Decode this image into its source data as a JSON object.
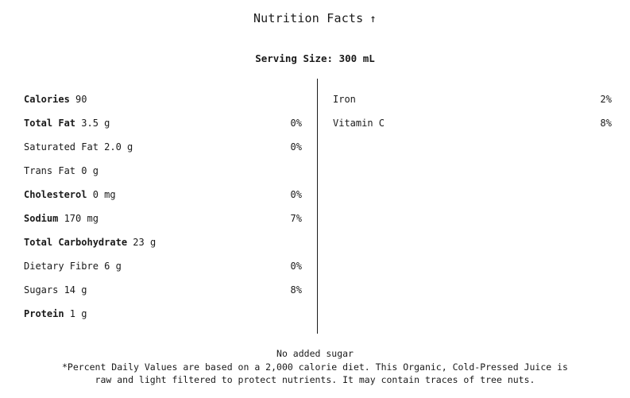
{
  "header": {
    "title": "Nutrition Facts",
    "toggle_icon": "arrow-up-icon",
    "toggle_glyph": "↑"
  },
  "serving_size": "Serving Size: 300 mL",
  "left_rows": [
    {
      "name": "Calories",
      "bold": true,
      "amount": " 90",
      "dv": ""
    },
    {
      "name": "Total Fat",
      "bold": true,
      "amount": " 3.5 g",
      "dv": "0%"
    },
    {
      "name": "Saturated Fat 2.0 g",
      "bold": false,
      "amount": "",
      "dv": "0%"
    },
    {
      "name": "Trans Fat 0 g",
      "bold": false,
      "amount": "",
      "dv": ""
    },
    {
      "name": "Cholesterol",
      "bold": true,
      "amount": " 0 mg",
      "dv": "0%"
    },
    {
      "name": "Sodium",
      "bold": true,
      "amount": " 170 mg",
      "dv": "7%"
    },
    {
      "name": "Total Carbohydrate",
      "bold": true,
      "amount": " 23 g",
      "dv": ""
    },
    {
      "name": "Dietary Fibre 6 g",
      "bold": false,
      "amount": "",
      "dv": "0%"
    },
    {
      "name": "Sugars 14 g",
      "bold": false,
      "amount": "",
      "dv": "8%"
    },
    {
      "name": "Protein",
      "bold": true,
      "amount": " 1 g",
      "dv": ""
    }
  ],
  "right_rows": [
    {
      "name": "Iron",
      "dv": "2%"
    },
    {
      "name": "Vitamin C",
      "dv": "8%"
    }
  ],
  "footer": {
    "line1": "No added sugar",
    "line2": "*Percent Daily Values are based on a 2,000 calorie diet. This Organic, Cold-Pressed Juice is",
    "line3": "raw and light filtered to protect nutrients. It may contain traces of tree nuts."
  }
}
